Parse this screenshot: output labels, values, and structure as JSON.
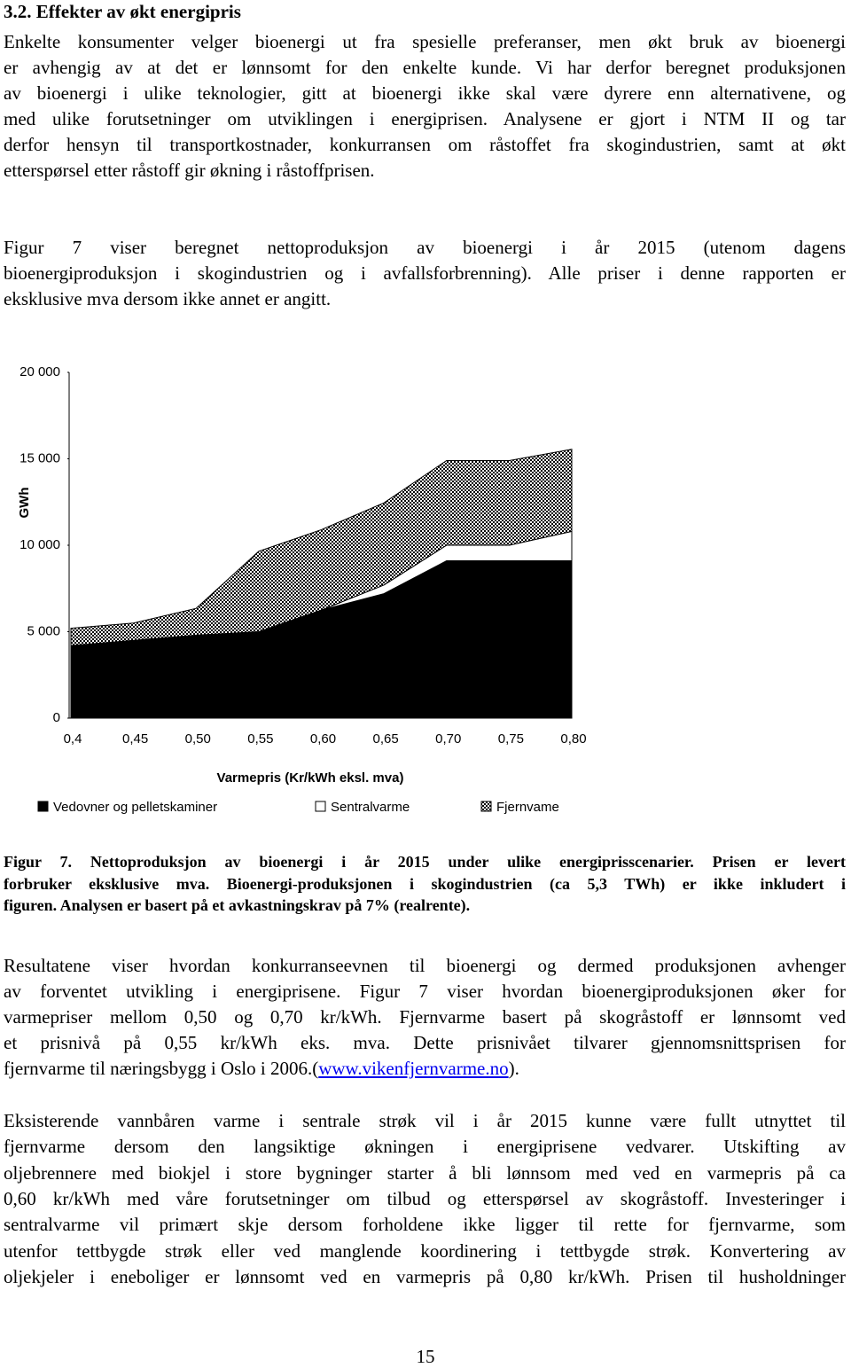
{
  "heading": "3.2. Effekter av økt energipris",
  "paragraph1": [
    "Enkelte konsumenter velger bioenergi ut fra spesielle preferanser, men økt bruk av bioenergi",
    "er avhengig av at det er lønnsomt for den enkelte kunde. Vi har derfor beregnet produksjonen",
    "av bioenergi i ulike teknologier, gitt at bioenergi ikke skal være dyrere enn alternativene, og",
    "med ulike forutsetninger om utviklingen i energiprisen. Analysene er gjort i NTM II og tar",
    "derfor hensyn til transportkostnader, konkurransen om råstoffet fra skogindustrien, samt at økt",
    "etterspørsel etter råstoff gir økning i råstoffprisen."
  ],
  "paragraph2": [
    "Figur 7 viser beregnet nettoproduksjon av bioenergi i år 2015 (utenom dagens",
    "bioenergiproduksjon i skogindustrien og i avfallsforbrenning). Alle priser i denne rapporten er",
    "eksklusive mva dersom ikke annet er angitt."
  ],
  "chart_data": {
    "type": "stacked_area",
    "y_label": "GWh",
    "x_label": "Varmepris (Kr/kWh eksl. mva)",
    "categories": [
      "0,4",
      "0,45",
      "0,50",
      "0,55",
      "0,60",
      "0,65",
      "0,70",
      "0,75",
      "0,80"
    ],
    "series": [
      {
        "name": "Vedovner og pelletskaminer",
        "color": "#000000",
        "values": [
          4200,
          4500,
          4800,
          5000,
          6250,
          7200,
          9100,
          9100,
          9100
        ]
      },
      {
        "name": "Sentralvarme",
        "color": "#ffffff",
        "values": [
          0,
          0,
          0,
          0,
          0,
          500,
          900,
          900,
          1700
        ]
      },
      {
        "name": "Fjernvame",
        "color": "#000000",
        "pattern": "dotted",
        "values": [
          1000,
          1000,
          1550,
          4650,
          4650,
          4750,
          4900,
          4900,
          4750
        ]
      }
    ],
    "ylim": [
      0,
      20000
    ],
    "yticks": [
      {
        "value": 0,
        "label": "0"
      },
      {
        "value": 5000,
        "label": "5 000"
      },
      {
        "value": 10000,
        "label": "10 000"
      },
      {
        "value": 15000,
        "label": "15 000"
      },
      {
        "value": 20000,
        "label": "20 000"
      }
    ]
  },
  "caption": [
    "Figur 7. Nettoproduksjon av bioenergi i år 2015 under ulike energiprisscenarier. Prisen er levert",
    "forbruker eksklusive mva. Bioenergi-produksjonen i skogindustrien (ca 5,3 TWh) er ikke inkludert i",
    "figuren. Analysen er basert på et avkastningskrav på 7% (realrente)."
  ],
  "paragraph3": [
    "Resultatene viser hvordan konkurranseevnen til bioenergi og dermed produksjonen avhenger",
    "av forventet utvikling i energiprisene. Figur 7 viser hvordan bioenergiproduksjonen øker for",
    "varmepriser mellom 0,50 og 0,70 kr/kWh. Fjernvarme basert på skogråstoff er lønnsomt ved",
    "et prisnivå på 0,55 kr/kWh eks. mva. Dette prisnivået tilvarer gjennomsnittsprisen for"
  ],
  "paragraph3_last": {
    "before": "fjernvarme til næringsbygg i Oslo i 2006.(",
    "link": "www.vikenfjernvarme.no",
    "after": ")."
  },
  "paragraph4": [
    "Eksisterende vannbåren varme i sentrale strøk vil i år 2015 kunne være fullt utnyttet til",
    "fjernvarme dersom den langsiktige økningen i energiprisene vedvarer. Utskifting av",
    "oljebrennere med biokjel i store bygninger starter å bli lønnsom med ved en varmepris på ca",
    "0,60 kr/kWh med våre forutsetninger om tilbud og etterspørsel av skogråstoff. Investeringer i",
    "sentralvarme vil primært skje dersom forholdene ikke ligger til rette for fjernvarme, som",
    "utenfor tettbygde strøk eller ved manglende koordinering i tettbygde strøk. Konvertering av",
    "oljekjeler i eneboliger er lønnsomt ved en varmepris på 0,80 kr/kWh. Prisen til husholdninger"
  ],
  "page_number": "15"
}
